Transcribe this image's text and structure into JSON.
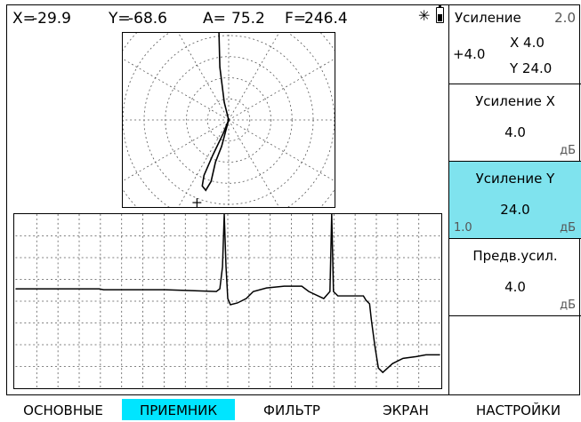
{
  "readout": {
    "x_label": "X=",
    "x_value": "-29.9",
    "y_label": "Y=",
    "y_value": "-68.6",
    "a_label": "A=",
    "a_value": "75.2",
    "f_label": "F=",
    "f_value": "246.4",
    "status_icons": [
      "asterisk-icon",
      "battery-icon"
    ]
  },
  "right_panel": {
    "gain": {
      "label": "Усиление",
      "step": "2.0",
      "total": "+4.0",
      "x": "X 4.0",
      "y": "Y 24.0"
    },
    "gain_x": {
      "label": "Усиление X",
      "value": "4.0",
      "unit": "дБ"
    },
    "gain_y": {
      "label": "Усиление Y",
      "value": "24.0",
      "min": "1.0",
      "unit": "дБ",
      "active": true
    },
    "preamp": {
      "label": "Предв.усил.",
      "value": "4.0",
      "unit": "дБ"
    }
  },
  "tabs": [
    {
      "label": "ОСНОВНЫЕ",
      "active": false
    },
    {
      "label": "ПРИЕМНИК",
      "active": true
    },
    {
      "label": "ФИЛЬТР",
      "active": false
    },
    {
      "label": "ЭКРАН",
      "active": false
    },
    {
      "label": "НАСТРОЙКИ",
      "active": false
    }
  ],
  "colors": {
    "highlight_panel": "#7fe3ee",
    "active_tab": "#00e5ff",
    "grid": "#555555"
  },
  "chart_data": [
    {
      "type": "polar",
      "description_points": [
        [
          -3,
          90
        ],
        [
          -1,
          50
        ],
        [
          0,
          0
        ],
        [
          -2,
          -15
        ],
        [
          -5,
          -38
        ],
        [
          -9,
          -48
        ],
        [
          -8,
          -40
        ],
        [
          -4,
          -20
        ],
        [
          0,
          0
        ]
      ],
      "marker": [
        -19,
        -36
      ]
    },
    {
      "type": "line",
      "series": [
        {
          "values": [
            [
              0,
              85
            ],
            [
              45,
              85
            ],
            [
              95,
              85
            ],
            [
              100,
              86
            ],
            [
              170,
              86
            ],
            [
              200,
              87
            ],
            [
              228,
              88
            ],
            [
              232,
              85
            ],
            [
              235,
              60
            ],
            [
              237,
              0
            ],
            [
              239,
              60
            ],
            [
              241,
              96
            ],
            [
              244,
              103
            ],
            [
              252,
              101
            ],
            [
              262,
              96
            ],
            [
              270,
              88
            ],
            [
              285,
              84
            ],
            [
              305,
              82
            ],
            [
              325,
              82
            ],
            [
              333,
              88
            ],
            [
              350,
              96
            ],
            [
              357,
              88
            ],
            [
              359,
              0
            ],
            [
              361,
              88
            ],
            [
              366,
              93
            ],
            [
              395,
              93
            ],
            [
              398,
              98
            ],
            [
              402,
              102
            ],
            [
              404,
              120
            ],
            [
              408,
              150
            ],
            [
              412,
              175
            ],
            [
              417,
              180
            ],
            [
              428,
              170
            ],
            [
              440,
              164
            ],
            [
              455,
              162
            ],
            [
              466,
              160
            ],
            [
              482,
              160
            ]
          ]
        }
      ],
      "xlim": [
        0,
        482
      ],
      "ylim": [
        0,
        198
      ]
    }
  ]
}
